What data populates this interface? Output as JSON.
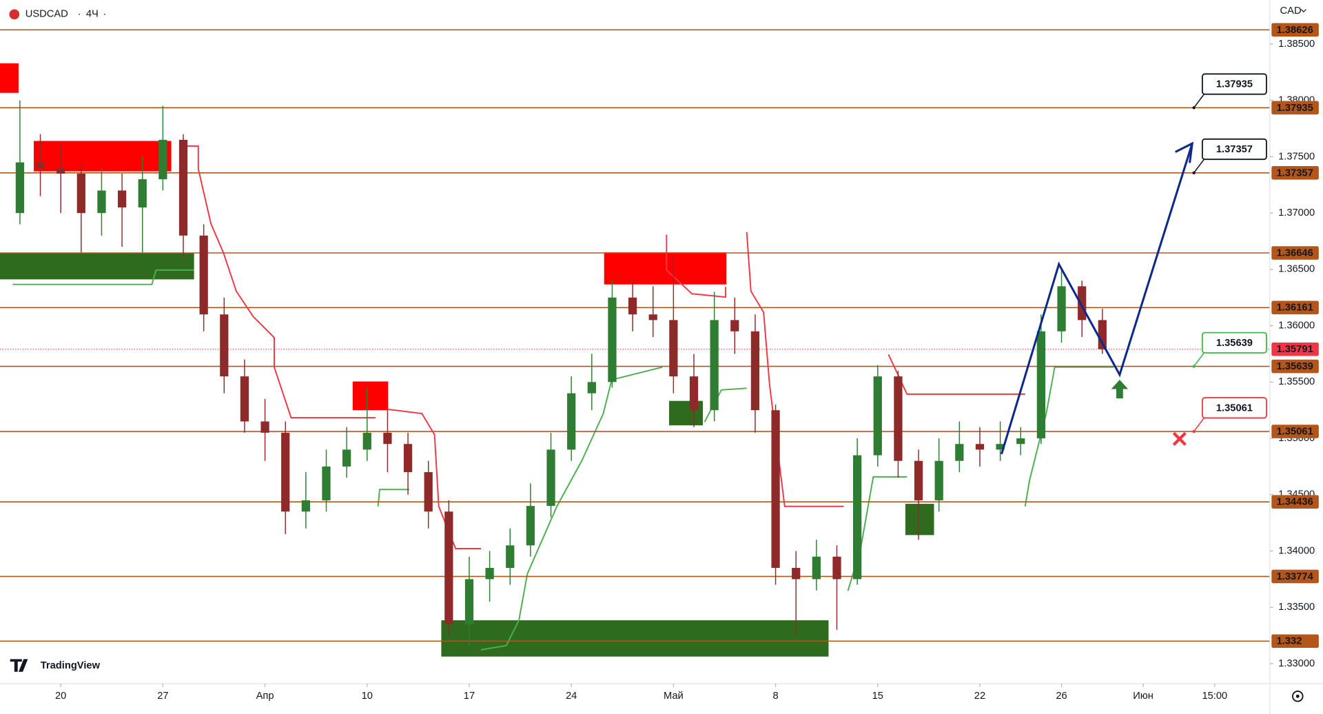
{
  "chart_data": {
    "type": "candlestick",
    "symbol": "USDCAD",
    "interval": "4Ч",
    "currency": "CAD",
    "brand": "TradingView",
    "up_color": "#2f7d32",
    "down_color": "#8e2a2a",
    "x": [
      -2,
      -1,
      0,
      1,
      2,
      3,
      4,
      5,
      6,
      7,
      8,
      9,
      10,
      11,
      12,
      13,
      14,
      15,
      16,
      17,
      18,
      19,
      20,
      21,
      22,
      23,
      24,
      25,
      26,
      27,
      28,
      29,
      30,
      31,
      32,
      33,
      34,
      35,
      36,
      37,
      38,
      39,
      40,
      41,
      42,
      43,
      44,
      45,
      46,
      47,
      48,
      49,
      50,
      51
    ],
    "open": [
      1.37,
      1.3745,
      1.374,
      1.3735,
      1.37,
      1.372,
      1.3705,
      1.373,
      1.3765,
      1.368,
      1.361,
      1.3555,
      1.3515,
      1.3505,
      1.3435,
      1.3445,
      1.3475,
      1.349,
      1.3505,
      1.3495,
      1.347,
      1.3435,
      1.3335,
      1.3375,
      1.3385,
      1.3405,
      1.344,
      1.349,
      1.354,
      1.355,
      1.3625,
      1.361,
      1.3605,
      1.3555,
      1.3525,
      1.3605,
      1.3595,
      1.3525,
      1.3385,
      1.3375,
      1.3395,
      1.3375,
      1.3485,
      1.3555,
      1.348,
      1.3445,
      1.348,
      1.3495,
      1.349,
      1.3495,
      1.35,
      1.3595,
      1.3635,
      1.3605
    ],
    "high": [
      1.38,
      1.377,
      1.376,
      1.3745,
      1.374,
      1.3735,
      1.375,
      1.3795,
      1.377,
      1.369,
      1.3625,
      1.357,
      1.3535,
      1.3515,
      1.347,
      1.349,
      1.351,
      1.3545,
      1.3525,
      1.3505,
      1.348,
      1.3445,
      1.3395,
      1.34,
      1.342,
      1.346,
      1.3505,
      1.3555,
      1.3575,
      1.364,
      1.364,
      1.3635,
      1.366,
      1.3575,
      1.363,
      1.3625,
      1.361,
      1.353,
      1.34,
      1.341,
      1.3405,
      1.35,
      1.3565,
      1.356,
      1.349,
      1.35,
      1.3515,
      1.351,
      1.3515,
      1.351,
      1.361,
      1.365,
      1.364,
      1.3615
    ],
    "low": [
      1.369,
      1.3715,
      1.37,
      1.3665,
      1.368,
      1.367,
      1.3665,
      1.372,
      1.366,
      1.3595,
      1.354,
      1.3505,
      1.348,
      1.3415,
      1.342,
      1.3435,
      1.3465,
      1.348,
      1.347,
      1.345,
      1.342,
      1.3325,
      1.3315,
      1.3355,
      1.337,
      1.3395,
      1.343,
      1.348,
      1.3525,
      1.3545,
      1.3595,
      1.359,
      1.354,
      1.351,
      1.3515,
      1.3575,
      1.3505,
      1.337,
      1.3325,
      1.3365,
      1.333,
      1.337,
      1.3475,
      1.3465,
      1.341,
      1.3435,
      1.347,
      1.3475,
      1.348,
      1.3485,
      1.3495,
      1.3585,
      1.359,
      1.3575
    ],
    "close": [
      1.3745,
      1.374,
      1.3735,
      1.37,
      1.372,
      1.3705,
      1.373,
      1.3765,
      1.368,
      1.361,
      1.3555,
      1.3515,
      1.3505,
      1.3435,
      1.3445,
      1.3475,
      1.349,
      1.3505,
      1.3495,
      1.347,
      1.3435,
      1.3335,
      1.3375,
      1.3385,
      1.3405,
      1.344,
      1.349,
      1.354,
      1.355,
      1.3625,
      1.361,
      1.3605,
      1.3555,
      1.3525,
      1.3605,
      1.3595,
      1.3525,
      1.3385,
      1.3375,
      1.3395,
      1.3375,
      1.3485,
      1.3555,
      1.348,
      1.3445,
      1.348,
      1.3495,
      1.349,
      1.3495,
      1.35,
      1.3595,
      1.3635,
      1.3605,
      1.35791
    ],
    "xlim": [
      -2.975,
      59.2
    ],
    "xticks": [
      {
        "value": 0,
        "label": "20"
      },
      {
        "value": 5,
        "label": "27"
      },
      {
        "value": 10,
        "label": "Апр"
      },
      {
        "value": 15,
        "label": "10"
      },
      {
        "value": 20,
        "label": "17"
      },
      {
        "value": 25,
        "label": "24"
      },
      {
        "value": 30,
        "label": "Май"
      },
      {
        "value": 35,
        "label": "8"
      },
      {
        "value": 40,
        "label": "15"
      },
      {
        "value": 45,
        "label": "22"
      },
      {
        "value": 49,
        "label": "26"
      },
      {
        "value": 53,
        "label": "Июн"
      },
      {
        "value": 56.5,
        "label": "15:00"
      }
    ],
    "ylim": [
      1.32823,
      1.38891
    ],
    "yticks": [
      {
        "value": 1.33,
        "label": "1.33000"
      },
      {
        "value": 1.335,
        "label": "1.33500"
      },
      {
        "value": 1.34,
        "label": "1.34000"
      },
      {
        "value": 1.345,
        "label": "1.34500"
      },
      {
        "value": 1.35,
        "label": "1.35000"
      },
      {
        "value": 1.355,
        "label": "1.35500"
      },
      {
        "value": 1.36,
        "label": "1.36000"
      },
      {
        "value": 1.365,
        "label": "1.36500"
      },
      {
        "value": 1.37,
        "label": "1.37000"
      },
      {
        "value": 1.375,
        "label": "1.37500"
      },
      {
        "value": 1.38,
        "label": "1.38000"
      },
      {
        "value": 1.385,
        "label": "1.38500"
      }
    ],
    "levels": [
      1.38626,
      1.37935,
      1.37357,
      1.36646,
      1.36161,
      1.35639,
      1.35061,
      1.34436,
      1.33774,
      1.332
    ],
    "level_color": "#b4561a",
    "last_price": 1.35791,
    "last_price_color": "#f23645",
    "callouts": [
      {
        "value": 1.37935,
        "color": "#131722"
      },
      {
        "value": 1.37357,
        "color": "#131722"
      },
      {
        "value": 1.35639,
        "color": "#43b649"
      },
      {
        "value": 1.35061,
        "color": "#f23645"
      }
    ]
  }
}
